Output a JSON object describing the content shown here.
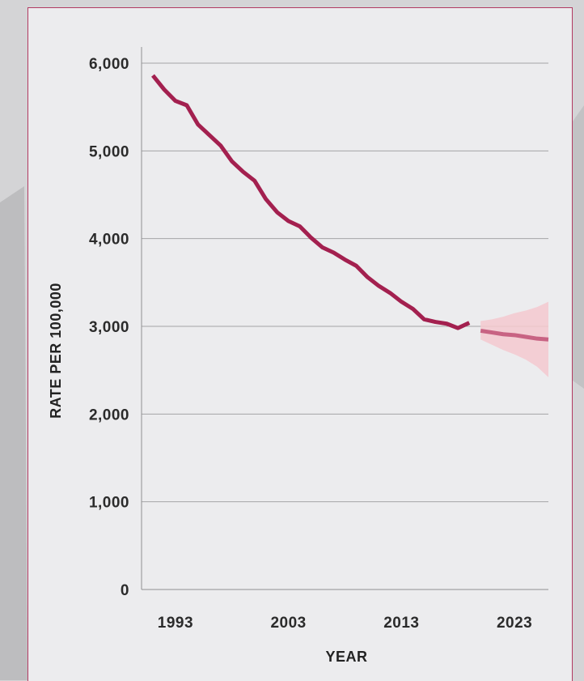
{
  "chart_data": {
    "type": "line",
    "xlabel": "YEAR",
    "ylabel": "RATE PER 100,000",
    "xlim": [
      1990,
      2026
    ],
    "ylim": [
      0,
      6000
    ],
    "x_ticks": [
      1993,
      2003,
      2013,
      2023
    ],
    "x_tick_labels": [
      "1993",
      "2003",
      "2013",
      "2023"
    ],
    "y_ticks": [
      0,
      1000,
      2000,
      3000,
      4000,
      5000,
      6000
    ],
    "y_tick_labels": [
      "0",
      "1,000",
      "2,000",
      "3,000",
      "4,000",
      "5,000",
      "6,000"
    ],
    "grid": "horizontal",
    "series": [
      {
        "kind": "observed",
        "color": "#a3204f",
        "x": [
          1991,
          1992,
          1993,
          1994,
          1995,
          1996,
          1997,
          1998,
          1999,
          2000,
          2001,
          2002,
          2003,
          2004,
          2005,
          2006,
          2007,
          2008,
          2009,
          2010,
          2011,
          2012,
          2013,
          2014,
          2015,
          2016,
          2017,
          2018,
          2019
        ],
        "y": [
          5860,
          5700,
          5570,
          5520,
          5300,
          5180,
          5060,
          4880,
          4760,
          4660,
          4450,
          4300,
          4200,
          4140,
          4010,
          3900,
          3840,
          3760,
          3690,
          3560,
          3460,
          3380,
          3280,
          3200,
          3080,
          3050,
          3030,
          2980,
          3040
        ]
      },
      {
        "kind": "projected",
        "color": "#c86383",
        "x": [
          2020,
          2021,
          2022,
          2023,
          2024,
          2025,
          2026
        ],
        "y": [
          2950,
          2930,
          2910,
          2900,
          2880,
          2860,
          2850
        ],
        "band_color": "#f4c9cf",
        "upper": [
          3060,
          3080,
          3110,
          3150,
          3180,
          3220,
          3280
        ],
        "lower": [
          2850,
          2790,
          2730,
          2680,
          2620,
          2540,
          2420
        ]
      }
    ]
  }
}
